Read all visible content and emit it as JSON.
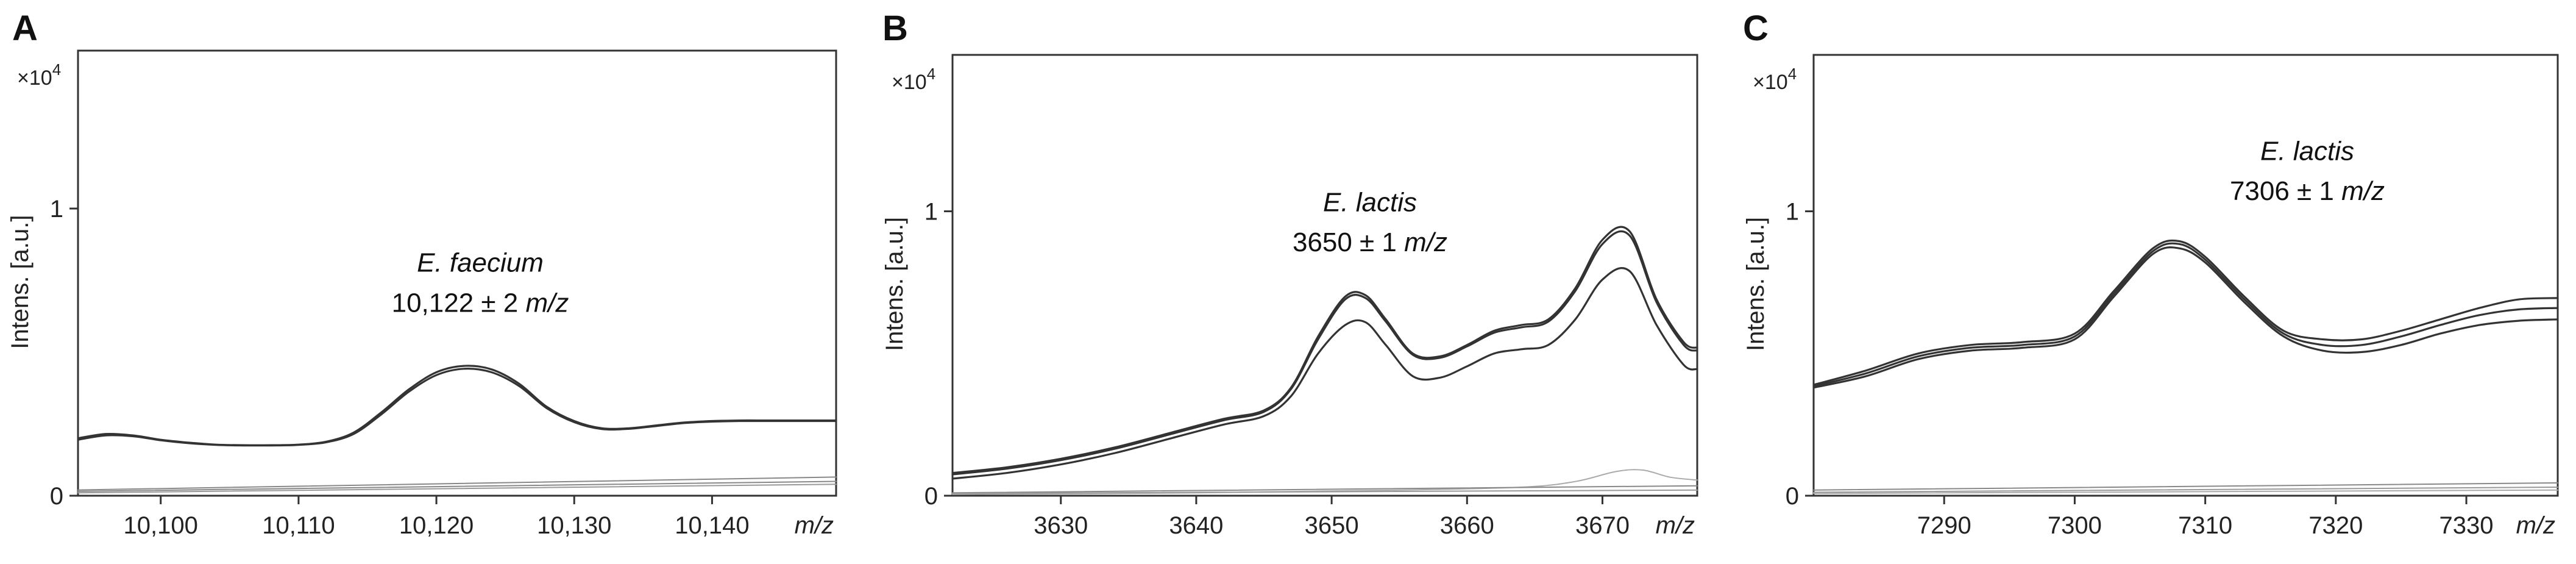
{
  "chart_data": [
    {
      "type": "line",
      "panel_label": "A",
      "multiplier": "×10",
      "multiplier_exp": "4",
      "ylabel": "Intens. [a.u.]",
      "xlabel": "m/z",
      "xlim": [
        10094,
        10149
      ],
      "ylim": [
        0,
        1.55
      ],
      "yticks": [
        {
          "v": 0,
          "label": "0"
        },
        {
          "v": 1,
          "label": "1"
        }
      ],
      "xticks": [
        {
          "v": 10100,
          "label": "10,100"
        },
        {
          "v": 10110,
          "label": "10,110"
        },
        {
          "v": 10120,
          "label": "10,120"
        },
        {
          "v": 10130,
          "label": "10,130"
        },
        {
          "v": 10140,
          "label": "10,140"
        }
      ],
      "annotation": {
        "species": "E. faecium",
        "value": "10,122 ± 2 ",
        "unit": "m/z"
      },
      "series": [
        {
          "color": "#333333",
          "x": [
            10094,
            10096,
            10098,
            10100,
            10102,
            10104,
            10106,
            10108,
            10110,
            10112,
            10114,
            10116,
            10118,
            10120,
            10122,
            10124,
            10126,
            10128,
            10130,
            10132,
            10134,
            10136,
            10138,
            10140,
            10142,
            10144,
            10146,
            10149
          ],
          "y": [
            0.2,
            0.215,
            0.21,
            0.195,
            0.185,
            0.178,
            0.176,
            0.176,
            0.178,
            0.188,
            0.22,
            0.29,
            0.37,
            0.43,
            0.452,
            0.44,
            0.39,
            0.31,
            0.26,
            0.235,
            0.235,
            0.245,
            0.255,
            0.26,
            0.262,
            0.262,
            0.262,
            0.262
          ]
        },
        {
          "color": "#333333",
          "x": [
            10094,
            10096,
            10098,
            10100,
            10102,
            10104,
            10106,
            10108,
            10110,
            10112,
            10114,
            10116,
            10118,
            10120,
            10122,
            10124,
            10126,
            10128,
            10130,
            10132,
            10134,
            10136,
            10138,
            10140,
            10142,
            10144,
            10146,
            10149
          ],
          "y": [
            0.195,
            0.21,
            0.207,
            0.193,
            0.183,
            0.177,
            0.175,
            0.175,
            0.177,
            0.186,
            0.215,
            0.283,
            0.362,
            0.42,
            0.442,
            0.43,
            0.382,
            0.305,
            0.256,
            0.232,
            0.233,
            0.243,
            0.253,
            0.258,
            0.26,
            0.26,
            0.26,
            0.26
          ]
        },
        {
          "color": "#888888",
          "x": [
            10094,
            10149
          ],
          "y": [
            0.02,
            0.065
          ]
        },
        {
          "color": "#888888",
          "x": [
            10094,
            10149
          ],
          "y": [
            0.015,
            0.05
          ]
        },
        {
          "color": "#999999",
          "x": [
            10094,
            10149
          ],
          "y": [
            0.01,
            0.04
          ]
        }
      ]
    },
    {
      "type": "line",
      "panel_label": "B",
      "multiplier": "×10",
      "multiplier_exp": "4",
      "ylabel": "Intens. [a.u.]",
      "xlabel": "m/z",
      "xlim": [
        3622,
        3677
      ],
      "ylim": [
        0,
        1.55
      ],
      "yticks": [
        {
          "v": 0,
          "label": "0"
        },
        {
          "v": 1,
          "label": "1"
        }
      ],
      "xticks": [
        {
          "v": 3630,
          "label": "3630"
        },
        {
          "v": 3640,
          "label": "3640"
        },
        {
          "v": 3650,
          "label": "3650"
        },
        {
          "v": 3660,
          "label": "3660"
        },
        {
          "v": 3670,
          "label": "3670"
        }
      ],
      "annotation": {
        "species": "E. lactis",
        "value": "3650 ± 1 ",
        "unit": "m/z"
      },
      "series": [
        {
          "color": "#333333",
          "x": [
            3622,
            3626,
            3630,
            3634,
            3638,
            3642,
            3645,
            3647,
            3649,
            3651,
            3652.5,
            3654,
            3656,
            3658,
            3660,
            3662,
            3664,
            3666,
            3668,
            3670,
            3672,
            3674,
            3676,
            3677
          ],
          "y": [
            0.08,
            0.1,
            0.13,
            0.17,
            0.22,
            0.27,
            0.3,
            0.38,
            0.56,
            0.7,
            0.705,
            0.62,
            0.5,
            0.49,
            0.53,
            0.58,
            0.6,
            0.62,
            0.73,
            0.9,
            0.93,
            0.69,
            0.54,
            0.52
          ]
        },
        {
          "color": "#333333",
          "x": [
            3622,
            3626,
            3630,
            3634,
            3638,
            3642,
            3645,
            3647,
            3649,
            3651,
            3652.5,
            3654,
            3656,
            3658,
            3660,
            3662,
            3664,
            3666,
            3668,
            3670,
            3672,
            3674,
            3676,
            3677
          ],
          "y": [
            0.075,
            0.095,
            0.125,
            0.165,
            0.215,
            0.265,
            0.295,
            0.375,
            0.55,
            0.69,
            0.695,
            0.612,
            0.495,
            0.485,
            0.525,
            0.573,
            0.592,
            0.612,
            0.72,
            0.885,
            0.915,
            0.68,
            0.53,
            0.51
          ]
        },
        {
          "color": "#333333",
          "x": [
            3622,
            3626,
            3630,
            3634,
            3638,
            3642,
            3645,
            3647,
            3649,
            3651,
            3652.5,
            3654,
            3656,
            3658,
            3660,
            3662,
            3664,
            3666,
            3668,
            3670,
            3672,
            3674,
            3676,
            3677
          ],
          "y": [
            0.06,
            0.08,
            0.11,
            0.15,
            0.2,
            0.25,
            0.28,
            0.35,
            0.5,
            0.6,
            0.61,
            0.53,
            0.42,
            0.415,
            0.455,
            0.5,
            0.515,
            0.53,
            0.62,
            0.76,
            0.79,
            0.6,
            0.46,
            0.445
          ]
        },
        {
          "color": "#aaaaaa",
          "x": [
            3622,
            3640,
            3655,
            3664,
            3668,
            3671,
            3673,
            3675,
            3677
          ],
          "y": [
            0.005,
            0.01,
            0.02,
            0.03,
            0.05,
            0.085,
            0.09,
            0.065,
            0.055
          ]
        },
        {
          "color": "#888888",
          "x": [
            3622,
            3677
          ],
          "y": [
            0.01,
            0.035
          ]
        },
        {
          "color": "#999999",
          "x": [
            3622,
            3677
          ],
          "y": [
            0.008,
            0.02
          ]
        }
      ]
    },
    {
      "type": "line",
      "panel_label": "C",
      "multiplier": "×10",
      "multiplier_exp": "4",
      "ylabel": "Intens. [a.u.]",
      "xlabel": "m/z",
      "xlim": [
        7280,
        7337
      ],
      "ylim": [
        0,
        1.55
      ],
      "yticks": [
        {
          "v": 0,
          "label": "0"
        },
        {
          "v": 1,
          "label": "1"
        }
      ],
      "xticks": [
        {
          "v": 7290,
          "label": "7290"
        },
        {
          "v": 7300,
          "label": "7300"
        },
        {
          "v": 7310,
          "label": "7310"
        },
        {
          "v": 7320,
          "label": "7320"
        },
        {
          "v": 7330,
          "label": "7330"
        }
      ],
      "annotation": {
        "species": "E. lactis",
        "value": "7306 ± 1 ",
        "unit": "m/z"
      },
      "series": [
        {
          "color": "#333333",
          "x": [
            7280,
            7284,
            7288,
            7292,
            7296,
            7300,
            7303,
            7306,
            7308,
            7310,
            7313,
            7316,
            7319,
            7322,
            7325,
            7328,
            7331,
            7334,
            7337
          ],
          "y": [
            0.39,
            0.44,
            0.5,
            0.53,
            0.54,
            0.57,
            0.72,
            0.87,
            0.895,
            0.84,
            0.7,
            0.58,
            0.55,
            0.55,
            0.58,
            0.62,
            0.66,
            0.69,
            0.695
          ]
        },
        {
          "color": "#333333",
          "x": [
            7280,
            7284,
            7288,
            7292,
            7296,
            7300,
            7303,
            7306,
            7308,
            7310,
            7313,
            7316,
            7319,
            7322,
            7325,
            7328,
            7331,
            7334,
            7337
          ],
          "y": [
            0.385,
            0.43,
            0.49,
            0.52,
            0.53,
            0.56,
            0.71,
            0.86,
            0.885,
            0.83,
            0.69,
            0.57,
            0.53,
            0.53,
            0.56,
            0.6,
            0.635,
            0.655,
            0.66
          ]
        },
        {
          "color": "#333333",
          "x": [
            7280,
            7284,
            7288,
            7292,
            7296,
            7300,
            7303,
            7306,
            7308,
            7310,
            7313,
            7316,
            7319,
            7322,
            7325,
            7328,
            7331,
            7334,
            7337
          ],
          "y": [
            0.38,
            0.42,
            0.48,
            0.51,
            0.52,
            0.55,
            0.7,
            0.85,
            0.87,
            0.82,
            0.68,
            0.56,
            0.51,
            0.505,
            0.53,
            0.57,
            0.6,
            0.615,
            0.62
          ]
        },
        {
          "color": "#888888",
          "x": [
            7280,
            7337
          ],
          "y": [
            0.02,
            0.045
          ]
        },
        {
          "color": "#999999",
          "x": [
            7280,
            7337
          ],
          "y": [
            0.012,
            0.03
          ]
        },
        {
          "color": "#aaaaaa",
          "x": [
            7280,
            7337
          ],
          "y": [
            0.008,
            0.02
          ]
        }
      ]
    }
  ]
}
